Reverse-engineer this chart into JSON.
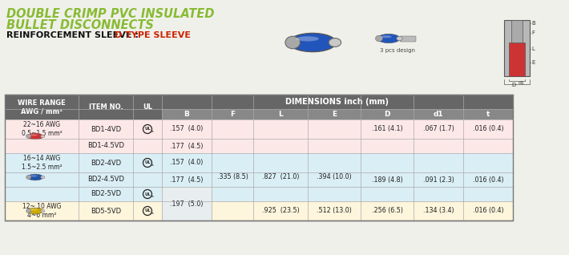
{
  "title_line1": "DOUBLE CRIMP PVC INSULATED",
  "title_line2": "BULLET DISCONNECTS",
  "subtitle_black": "REINFORCEMENT SLEEVE : ",
  "subtitle_red": "D TYPE SLEEVE",
  "rows": [
    {
      "wire_range": "22~16 AWG\n0.5~1.5 mm²",
      "item": "BD1-4VD",
      "ul": true,
      "B": ".157  (4.0)",
      "F": "",
      "L": "",
      "E": "",
      "D": ".161 (4.1)",
      "d1": ".067 (1.7)",
      "t": ".016 (0.4)",
      "group": 0
    },
    {
      "wire_range": "",
      "item": "BD1-4.5VD",
      "ul": false,
      "B": ".177  (4.5)",
      "F": "",
      "L": "",
      "E": "",
      "D": "",
      "d1": "",
      "t": "",
      "group": 0
    },
    {
      "wire_range": "16~14 AWG\n1.5~2.5 mm²",
      "item": "BD2-4VD",
      "ul": true,
      "B": ".157  (4.0)",
      "F": "",
      "L": "",
      "E": "",
      "D": "",
      "d1": "",
      "t": "",
      "group": 1
    },
    {
      "wire_range": "",
      "item": "BD2-4.5VD",
      "ul": false,
      "B": ".177  (4.5)",
      "F": "",
      "L": "",
      "E": "",
      "D": ".189 (4.8)",
      "d1": ".091 (2.3)",
      "t": ".016 (0.4)",
      "group": 1
    },
    {
      "wire_range": "",
      "item": "BD2-5VD",
      "ul": true,
      "B": "",
      "F": "",
      "L": "",
      "E": "",
      "D": "",
      "d1": "",
      "t": "",
      "group": 1
    },
    {
      "wire_range": "12~ 10 AWG\n4~6 mm²",
      "item": "BD5-5VD",
      "ul": true,
      "B": "",
      "F": "",
      "L": ".925  (23.5)",
      "E": ".512 (13.0)",
      "D": ".256 (6.5)",
      "d1": ".134 (3.4)",
      "t": ".016 (0.4)",
      "group": 2
    }
  ],
  "merged_cells": {
    "F_blue": ".335 (8.5)",
    "L_blue": ".827  (21.0)",
    "E_blue": ".394 (10.0)",
    "B_rows45": ".197  (5.0)"
  },
  "header_bg": "#666666",
  "subheader_bg": "#888888",
  "group_colors": [
    "#fde8e8",
    "#daeef5",
    "#fdf5dc"
  ],
  "group_connector_colors": [
    "#cc3333",
    "#2255aa",
    "#ccaa00"
  ],
  "title_color": "#88bb33",
  "subtitle_red_color": "#cc2200",
  "bg_color": "#f0f0eb"
}
